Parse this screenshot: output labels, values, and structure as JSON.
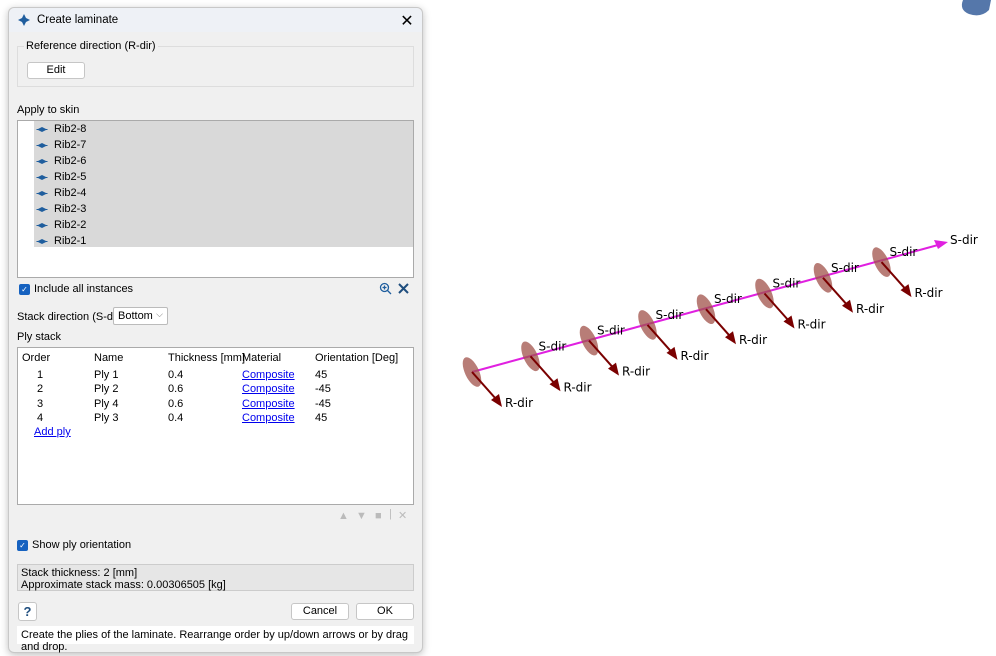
{
  "dialog": {
    "title": "Create laminate",
    "reference_group": "Reference direction (R-dir)",
    "edit_label": "Edit",
    "apply_to_skin": "Apply to skin",
    "skins": [
      "Rib2-8",
      "Rib2-7",
      "Rib2-6",
      "Rib2-5",
      "Rib2-4",
      "Rib2-3",
      "Rib2-2",
      "Rib2-1"
    ],
    "include_all_instances": "Include all instances",
    "include_all_checked": true,
    "stack_direction_label": "Stack direction (S-dir)",
    "stack_direction_value": "Bottom",
    "ply_stack_label": "Ply stack",
    "columns": [
      "Order",
      "Name",
      "Thickness [mm]",
      "Material",
      "Orientation [Deg]"
    ],
    "plies": [
      {
        "order": "1",
        "name": "Ply 1",
        "thickness": "0.4",
        "material": "Composite",
        "orientation": "45"
      },
      {
        "order": "2",
        "name": "Ply 2",
        "thickness": "0.6",
        "material": "Composite",
        "orientation": "-45"
      },
      {
        "order": "3",
        "name": "Ply 4",
        "thickness": "0.6",
        "material": "Composite",
        "orientation": "-45"
      },
      {
        "order": "4",
        "name": "Ply 3",
        "thickness": "0.4",
        "material": "Composite",
        "orientation": "45"
      }
    ],
    "add_ply": "Add ply",
    "show_ply_orientation": "Show ply orientation",
    "show_ply_checked": true,
    "stack_thickness": "Stack thickness: 2 [mm]",
    "stack_mass": "Approximate stack mass: 0.00306505 [kg]",
    "help": "?",
    "cancel": "Cancel",
    "ok": "OK",
    "hint": "Create the plies of the laminate. Rearrange order by up/down arrows or by drag and drop."
  },
  "viewport": {
    "s_label": "S-dir",
    "r_label": "R-dir",
    "node_count": 8,
    "colors": {
      "s_axis": "#e020e0",
      "r_arrow": "#7a0000",
      "disk": "#a0524a"
    }
  }
}
